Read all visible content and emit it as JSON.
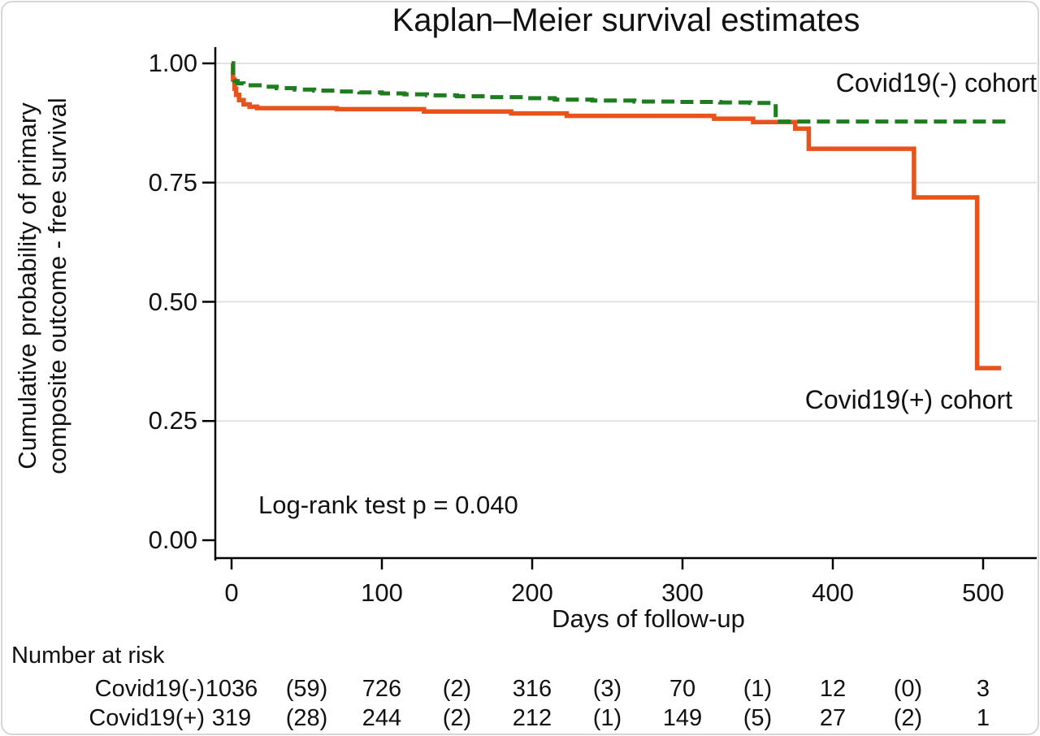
{
  "title": "Kaplan–Meier survival estimates",
  "colors": {
    "cohort_negative": "#1e7d1e",
    "cohort_positive": "#e8531d",
    "grid": "#e2e2e2",
    "axis": "#000000",
    "text": "#111111",
    "frame_border": "#d6d6d6"
  },
  "annotations": {
    "cohort_negative_label": "Covid19(-) cohort",
    "cohort_positive_label": "Covid19(+) cohort",
    "logrank_text": "Log-rank test p = 0.040"
  },
  "chart_data": {
    "type": "line",
    "subtype": "kaplan-meier-step",
    "title": "Kaplan–Meier survival estimates",
    "xlabel": "Days of follow-up",
    "ylabel_line1": "Cumulative probability of primary",
    "ylabel_line2": "composite outcome - free survival",
    "xlim": [
      0,
      535
    ],
    "ylim": [
      0.0,
      1.0
    ],
    "grid": "horizontal",
    "legend_position": "labels-on-plot",
    "x_ticks": [
      {
        "value": 0,
        "label": "0"
      },
      {
        "value": 100,
        "label": "100"
      },
      {
        "value": 200,
        "label": "200"
      },
      {
        "value": 300,
        "label": "300"
      },
      {
        "value": 400,
        "label": "400"
      },
      {
        "value": 500,
        "label": "500"
      }
    ],
    "y_ticks": [
      {
        "value": 0.0,
        "label": "0.00"
      },
      {
        "value": 0.25,
        "label": "0.25"
      },
      {
        "value": 0.5,
        "label": "0.50"
      },
      {
        "value": 0.75,
        "label": "0.75"
      },
      {
        "value": 1.0,
        "label": "1.00"
      }
    ],
    "gridline_values": [
      0.25,
      0.5,
      0.75,
      1.0
    ],
    "series": [
      {
        "name": "Covid19(+) cohort",
        "color": "#e8531d",
        "style": "solid",
        "stroke_width": 5.5,
        "end_day": 512,
        "points": [
          [
            0,
            1.0
          ],
          [
            1,
            0.966
          ],
          [
            2,
            0.947
          ],
          [
            3,
            0.934
          ],
          [
            5,
            0.923
          ],
          [
            8,
            0.914
          ],
          [
            12,
            0.909
          ],
          [
            17,
            0.906
          ],
          [
            70,
            0.904
          ],
          [
            128,
            0.899
          ],
          [
            186,
            0.895
          ],
          [
            223,
            0.89
          ],
          [
            321,
            0.884
          ],
          [
            347,
            0.877
          ],
          [
            375,
            0.863
          ],
          [
            384,
            0.821
          ],
          [
            454,
            0.719
          ],
          [
            496,
            0.361
          ]
        ]
      },
      {
        "name": "Covid19(-) cohort",
        "color": "#1e7d1e",
        "style": "dashed",
        "stroke_width": 5,
        "end_day": 517,
        "points": [
          [
            0,
            1.0
          ],
          [
            1,
            0.974
          ],
          [
            2,
            0.963
          ],
          [
            4,
            0.958
          ],
          [
            8,
            0.954
          ],
          [
            20,
            0.951
          ],
          [
            30,
            0.948
          ],
          [
            42,
            0.945
          ],
          [
            55,
            0.943
          ],
          [
            70,
            0.941
          ],
          [
            85,
            0.939
          ],
          [
            100,
            0.937
          ],
          [
            115,
            0.935
          ],
          [
            130,
            0.933
          ],
          [
            150,
            0.931
          ],
          [
            170,
            0.929
          ],
          [
            195,
            0.927
          ],
          [
            215,
            0.924
          ],
          [
            240,
            0.922
          ],
          [
            268,
            0.92
          ],
          [
            295,
            0.919
          ],
          [
            325,
            0.918
          ],
          [
            345,
            0.917
          ],
          [
            362,
            0.878
          ]
        ]
      }
    ]
  },
  "risk_table": {
    "header": "Number at risk",
    "positions_days": [
      0,
      50,
      100,
      150,
      200,
      250,
      300,
      350,
      400,
      450,
      500
    ],
    "rows": [
      {
        "label": "Covid19(-)",
        "values": [
          "1036",
          "(59)",
          "726",
          "(2)",
          "316",
          "(3)",
          "70",
          "(1)",
          "12",
          "(0)",
          "3"
        ]
      },
      {
        "label": "Covid19(+)",
        "values": [
          "319",
          "(28)",
          "244",
          "(2)",
          "212",
          "(1)",
          "149",
          "(5)",
          "27",
          "(2)",
          "1"
        ]
      }
    ]
  }
}
